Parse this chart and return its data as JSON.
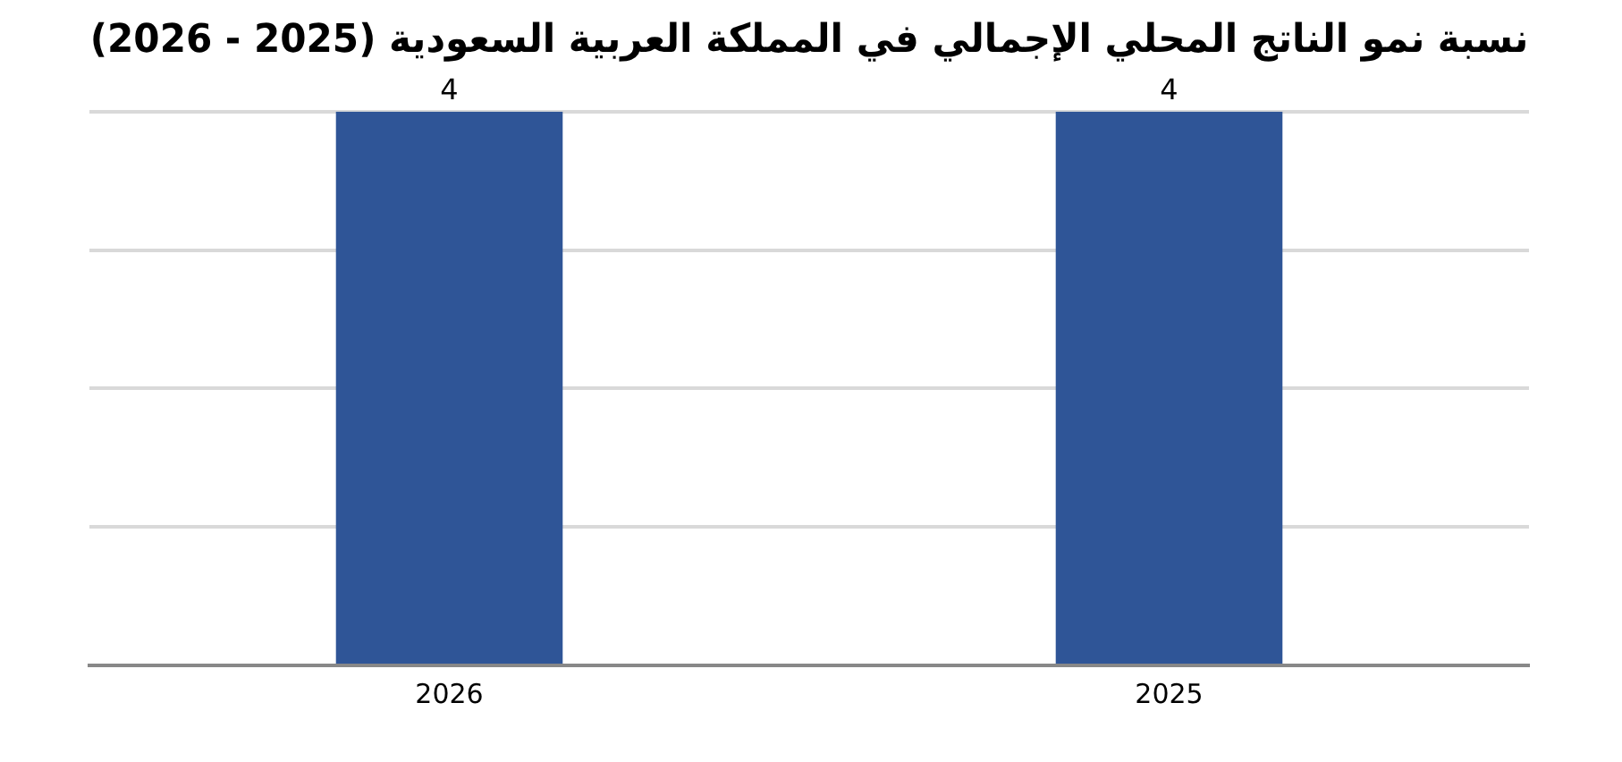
{
  "chart_data": {
    "type": "bar",
    "title": "نسبة نمو الناتج المحلي الإجمالي في المملكة العربية السعودية (2025 - 2026)",
    "categories": [
      "2026",
      "2025"
    ],
    "values": [
      4,
      4
    ],
    "color": "#2f5597",
    "ylim": [
      0,
      4
    ],
    "yticks": [
      0,
      1,
      2,
      3,
      4
    ],
    "grid": "y",
    "tick_labels": "x",
    "data_labels": true
  }
}
